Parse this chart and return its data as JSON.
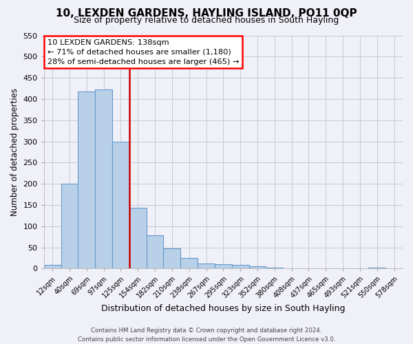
{
  "title": "10, LEXDEN GARDENS, HAYLING ISLAND, PO11 0QP",
  "subtitle": "Size of property relative to detached houses in South Hayling",
  "xlabel": "Distribution of detached houses by size in South Hayling",
  "ylabel": "Number of detached properties",
  "bar_labels": [
    "12sqm",
    "40sqm",
    "69sqm",
    "97sqm",
    "125sqm",
    "154sqm",
    "182sqm",
    "210sqm",
    "238sqm",
    "267sqm",
    "295sqm",
    "323sqm",
    "352sqm",
    "380sqm",
    "408sqm",
    "437sqm",
    "465sqm",
    "493sqm",
    "521sqm",
    "550sqm",
    "578sqm"
  ],
  "bar_heights": [
    8,
    200,
    418,
    422,
    300,
    143,
    78,
    48,
    25,
    12,
    10,
    8,
    5,
    2,
    1,
    0,
    0,
    0,
    0,
    2,
    0
  ],
  "bar_color": "#b8d0e8",
  "bar_edge_color": "#6699cc",
  "vline_color": "#cc0000",
  "annotation_title": "10 LEXDEN GARDENS: 138sqm",
  "annotation_line1": "← 71% of detached houses are smaller (1,180)",
  "annotation_line2": "28% of semi-detached houses are larger (465) →",
  "ylim": [
    0,
    550
  ],
  "yticks": [
    0,
    50,
    100,
    150,
    200,
    250,
    300,
    350,
    400,
    450,
    500,
    550
  ],
  "footnote1": "Contains HM Land Registry data © Crown copyright and database right 2024.",
  "footnote2": "Contains public sector information licensed under the Open Government Licence v3.0.",
  "bg_color": "#f0f0f8",
  "grid_color": "#c8c8d8"
}
